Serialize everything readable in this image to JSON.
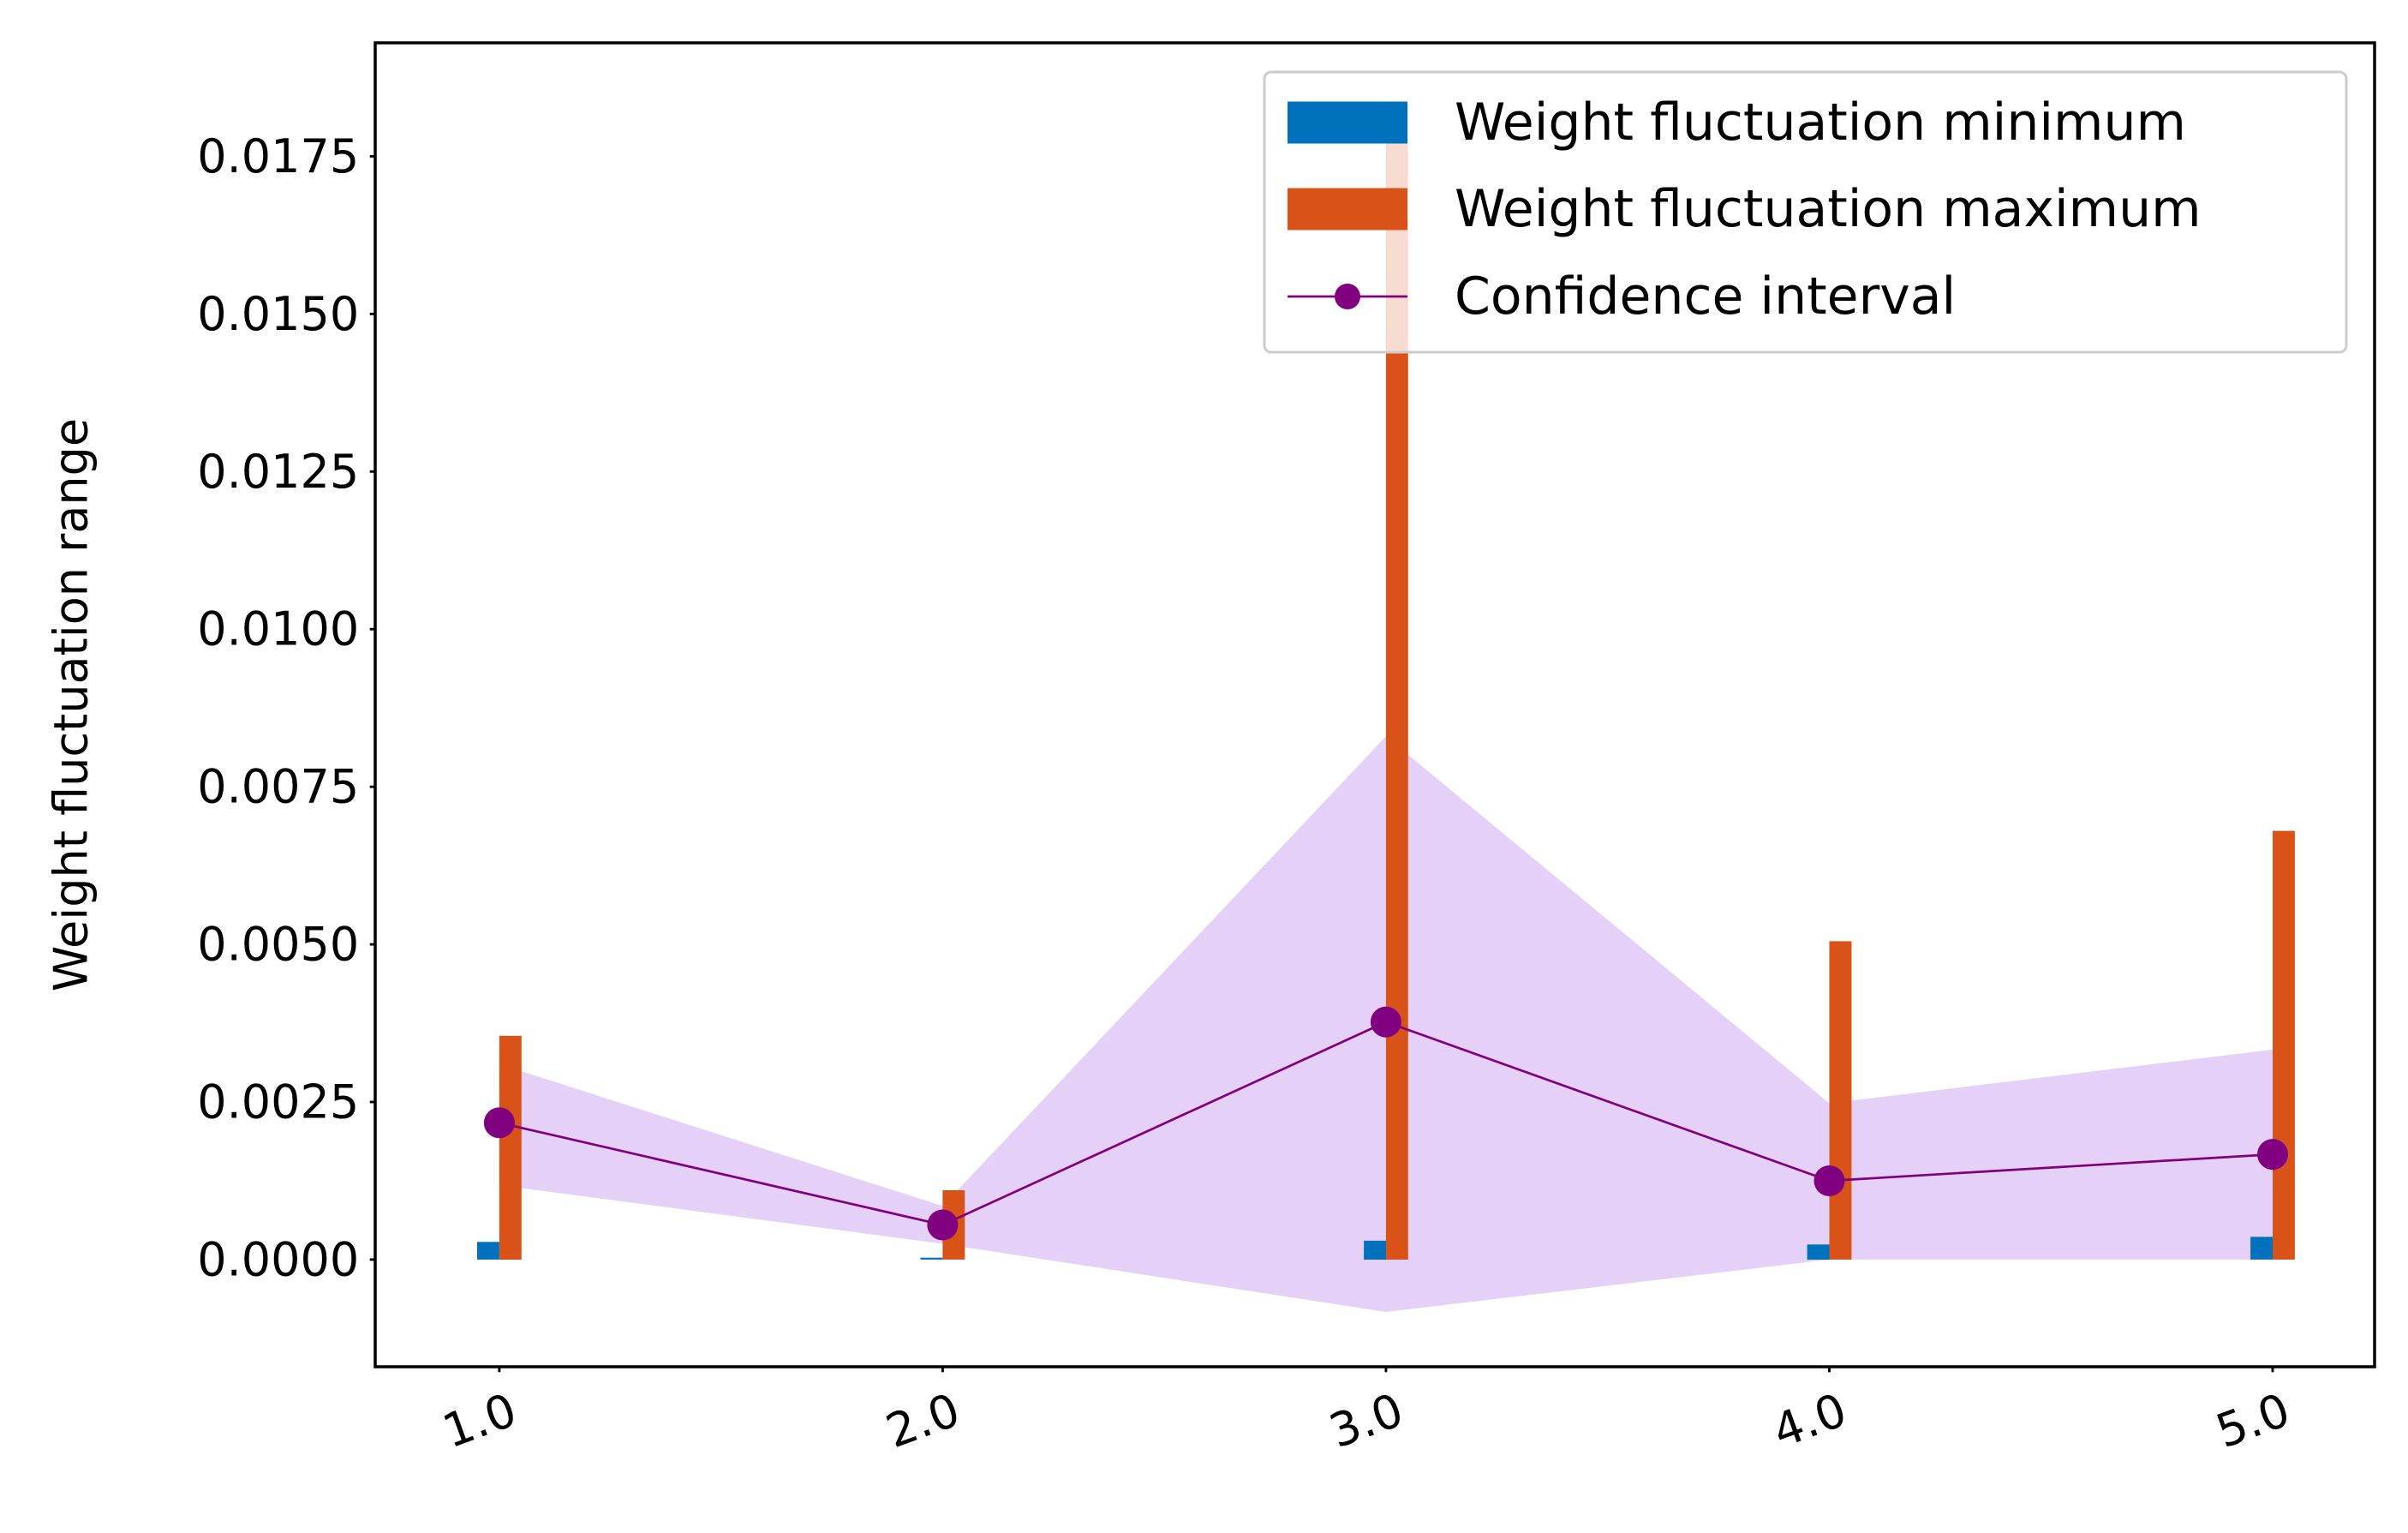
{
  "chart_data": {
    "type": "bar",
    "title": "",
    "xlabel": "",
    "ylabel": "Weight fluctuation range",
    "categories": [
      "1.0",
      "2.0",
      "3.0",
      "4.0",
      "5.0"
    ],
    "x": [
      1.0,
      2.0,
      3.0,
      4.0,
      5.0
    ],
    "ylim": [
      -0.0017,
      0.0193
    ],
    "xlim": [
      0.72,
      5.23
    ],
    "yticks": [
      0.0,
      0.0025,
      0.005,
      0.0075,
      0.01,
      0.0125,
      0.015,
      0.0175
    ],
    "ytick_labels": [
      "0.0000",
      "0.0025",
      "0.0050",
      "0.0075",
      "0.0100",
      "0.0125",
      "0.0150",
      "0.0175"
    ],
    "grid": false,
    "legend_position": "top-right",
    "series": [
      {
        "name": "Weight fluctuation minimum",
        "kind": "bar",
        "color": "#0072BD",
        "values": [
          0.00028,
          3e-05,
          0.0003,
          0.00024,
          0.00036
        ]
      },
      {
        "name": "Weight fluctuation maximum",
        "kind": "bar",
        "color": "#D95319",
        "values": [
          0.00355,
          0.0011,
          0.0178,
          0.00505,
          0.0068
        ]
      },
      {
        "name": "Confidence interval",
        "kind": "line",
        "color": "#800080",
        "values": [
          0.00217,
          0.00055,
          0.00377,
          0.00125,
          0.00167
        ],
        "band_lower": [
          0.00118,
          0.00025,
          -0.00083,
          0.0,
          0.0
        ],
        "band_upper": [
          0.0031,
          0.00085,
          0.0083,
          0.00248,
          0.00333
        ],
        "band_color": "#E5D0F7"
      }
    ]
  }
}
